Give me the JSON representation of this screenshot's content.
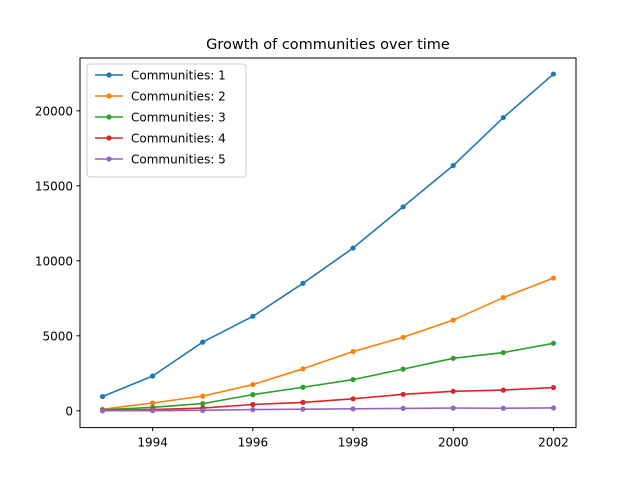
{
  "chart_data": {
    "type": "line",
    "title": "Growth of communities over time",
    "xlabel": "",
    "ylabel": "",
    "x": [
      1993,
      1994,
      1995,
      1996,
      1997,
      1998,
      1999,
      2000,
      2001,
      2002
    ],
    "xlim": [
      1992.55,
      2002.45
    ],
    "ylim": [
      -1120,
      23520
    ],
    "xticks": [
      1994,
      1996,
      1998,
      2000,
      2002
    ],
    "yticks": [
      0,
      5000,
      10000,
      15000,
      20000
    ],
    "grid": false,
    "legend_position": "top-left",
    "series": [
      {
        "name": "Communities: 1",
        "color": "#1f77b4",
        "values": [
          950,
          2320,
          4580,
          6300,
          8500,
          10850,
          13600,
          16350,
          19550,
          22450
        ]
      },
      {
        "name": "Communities: 2",
        "color": "#ff7f0e",
        "values": [
          100,
          520,
          980,
          1750,
          2800,
          3950,
          4900,
          6050,
          7550,
          8850
        ]
      },
      {
        "name": "Communities: 3",
        "color": "#2ca02c",
        "values": [
          60,
          230,
          480,
          1080,
          1570,
          2080,
          2780,
          3500,
          3880,
          4500
        ]
      },
      {
        "name": "Communities: 4",
        "color": "#d62728",
        "values": [
          20,
          80,
          180,
          420,
          560,
          800,
          1100,
          1300,
          1380,
          1550
        ]
      },
      {
        "name": "Communities: 5",
        "color": "#9467bd",
        "values": [
          5,
          10,
          30,
          80,
          110,
          130,
          160,
          180,
          170,
          190
        ]
      }
    ]
  }
}
